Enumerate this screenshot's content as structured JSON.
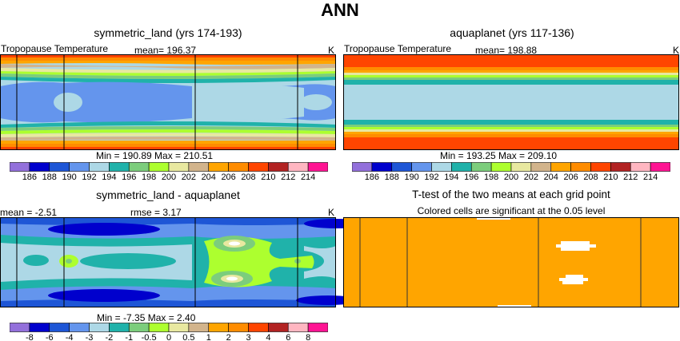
{
  "main_title": "ANN",
  "panels": [
    {
      "title": "symmetric_land (yrs 174-193)",
      "variable": "Tropopause Temperature",
      "mean": "mean=  196.37",
      "units": "K",
      "minmax": "Min = 190.89  Max = 210.51"
    },
    {
      "title": "aquaplanet (yrs 117-136)",
      "variable": "Tropopause Temperature",
      "mean": "mean=  198.88",
      "units": "K",
      "minmax": "Min = 193.25  Max = 209.10"
    },
    {
      "title": "symmetric_land - aquaplanet",
      "mean": "mean =  -2.51",
      "rmse": "rmse =   3.17",
      "units": "K",
      "minmax": "Min =  -7.35  Max =   2.40"
    },
    {
      "title": "T-test of the two means at each grid point",
      "subtitle": "Colored cells are significant at the 0.05 level"
    }
  ],
  "colorbar_abs": {
    "labels": [
      "186",
      "188",
      "190",
      "192",
      "194",
      "196",
      "198",
      "200",
      "202",
      "204",
      "206",
      "208",
      "210",
      "212",
      "214"
    ],
    "colors": [
      "#9370db",
      "#0000cd",
      "#1e56d6",
      "#6495ed",
      "#add8e6",
      "#20b2aa",
      "#7ccd7c",
      "#adff2f",
      "#e8e8a0",
      "#d2b48c",
      "#ffa500",
      "#ff8c00",
      "#ff4500",
      "#b22222",
      "#ffb6c1",
      "#ff1493"
    ]
  },
  "colorbar_diff": {
    "labels": [
      "-8",
      "-6",
      "-4",
      "-3",
      "-2",
      "-1",
      "-0.5",
      "0",
      "0.5",
      "1",
      "2",
      "3",
      "4",
      "6",
      "8"
    ],
    "colors": [
      "#9370db",
      "#0000cd",
      "#1e56d6",
      "#6495ed",
      "#add8e6",
      "#20b2aa",
      "#7ccd7c",
      "#adff2f",
      "#e8e8a0",
      "#d2b48c",
      "#ffa500",
      "#ff8c00",
      "#ff4500",
      "#b22222",
      "#ffb6c1",
      "#ff1493"
    ]
  },
  "chart_data": [
    {
      "type": "heatmap",
      "title": "symmetric_land (yrs 174-193)",
      "variable": "Tropopause Temperature",
      "units": "K",
      "mean": 196.37,
      "min": 190.89,
      "max": 210.51
    },
    {
      "type": "heatmap",
      "title": "aquaplanet (yrs 117-136)",
      "variable": "Tropopause Temperature",
      "units": "K",
      "mean": 198.88,
      "min": 193.25,
      "max": 209.1
    },
    {
      "type": "heatmap",
      "title": "symmetric_land - aquaplanet",
      "units": "K",
      "mean": -2.51,
      "rmse": 3.17,
      "min": -7.35,
      "max": 2.4
    },
    {
      "type": "heatmap",
      "title": "T-test of the two means at each grid point",
      "significance_level": 0.05
    }
  ]
}
